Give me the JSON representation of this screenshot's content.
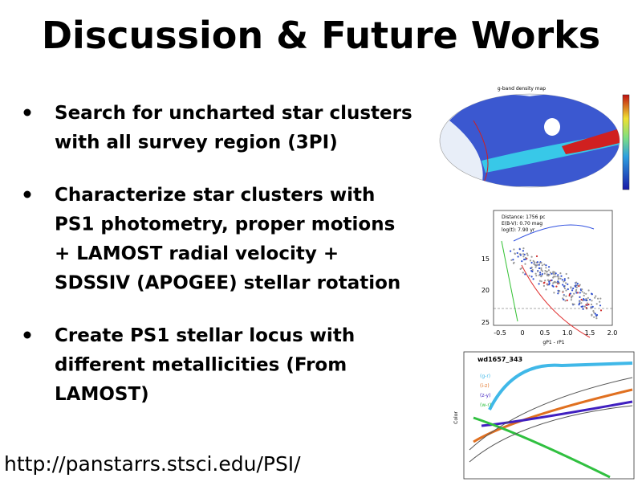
{
  "header": {
    "title": "Discussion & Future Works"
  },
  "bullets": [
    {
      "lines": [
        "Search for uncharted star clusters",
        "with all survey region (3PI)"
      ]
    },
    {
      "lines": [
        "Characterize star clusters with",
        "PS1 photometry, proper motions",
        "+ LAMOST radial velocity +",
        "SDSSIV (APOGEE) stellar rotation"
      ]
    },
    {
      "lines": [
        "Create PS1 stellar locus with",
        "different metallicities (From",
        "LAMOST)"
      ]
    }
  ],
  "footer": {
    "url": "http://panstarrs.stsci.edu/PSI/"
  },
  "figures": [
    {
      "title": "g-band density map"
    },
    {
      "info": [
        "Distance: 1756 pc",
        "E(B-V): 0.70 mag",
        "log(t): 7.90 yr"
      ],
      "yticks": [
        "15",
        "20",
        "25"
      ],
      "xticks": [
        "-0.5",
        "0",
        "0.5",
        "1.0",
        "1.5",
        "2.0"
      ],
      "xlabel": "gP1 - rP1"
    },
    {
      "title": "wd1657_343",
      "legend": [
        "(g-r)",
        "(i-z)",
        "(z-y)",
        "(w-r)"
      ],
      "ylabel": "Color"
    }
  ]
}
